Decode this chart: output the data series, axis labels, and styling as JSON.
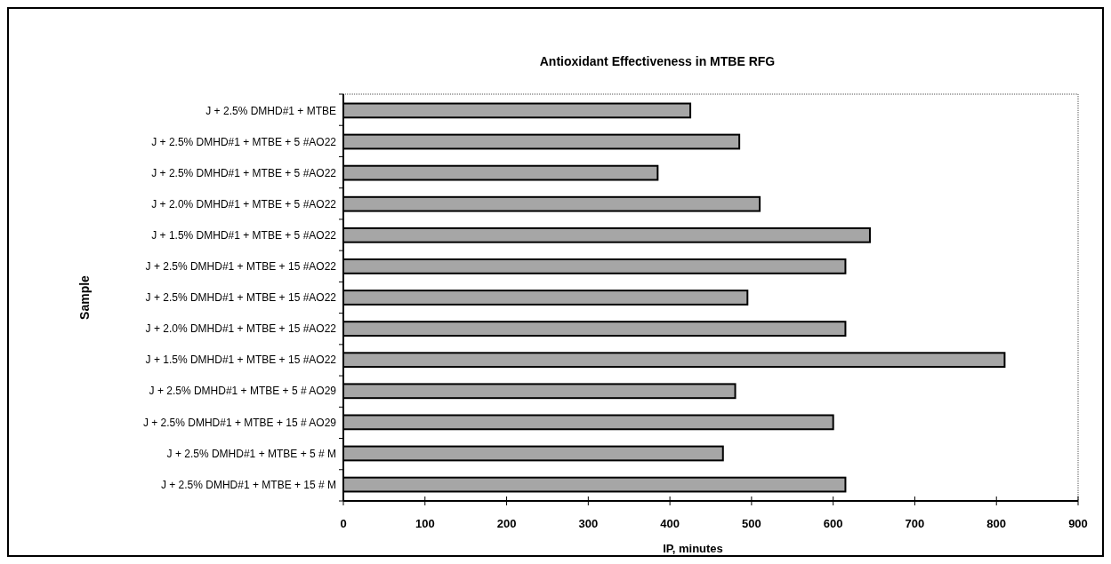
{
  "chart_data": {
    "type": "bar",
    "orientation": "horizontal",
    "title": "Antioxidant Effectiveness in MTBE RFG",
    "xlabel": "IP, minutes",
    "ylabel": "Sample",
    "categories": [
      "J + 2.5% DMHD#1 + MTBE",
      "J + 2.5% DMHD#1 + MTBE + 5 #AO22",
      "J + 2.5% DMHD#1 + MTBE + 5 #AO22",
      "J + 2.0% DMHD#1 + MTBE + 5 #AO22",
      "J + 1.5% DMHD#1 + MTBE + 5 #AO22",
      "J + 2.5% DMHD#1 + MTBE + 15 #AO22",
      "J + 2.5% DMHD#1 + MTBE + 15 #AO22",
      "J + 2.0% DMHD#1 + MTBE + 15 #AO22",
      "J + 1.5% DMHD#1 + MTBE + 15 #AO22",
      "J + 2.5% DMHD#1 + MTBE + 5 # AO29",
      "J + 2.5% DMHD#1 + MTBE + 15 # AO29",
      "J + 2.5% DMHD#1 + MTBE + 5 # M",
      "J + 2.5% DMHD#1 + MTBE + 15 # M"
    ],
    "values": [
      425,
      485,
      385,
      510,
      645,
      615,
      495,
      615,
      810,
      480,
      600,
      465,
      615
    ],
    "color": "#a6a6a6",
    "xlim": [
      0,
      900
    ],
    "xticks": [
      0,
      100,
      200,
      300,
      400,
      500,
      600,
      700,
      800,
      900
    ],
    "grid": false
  }
}
